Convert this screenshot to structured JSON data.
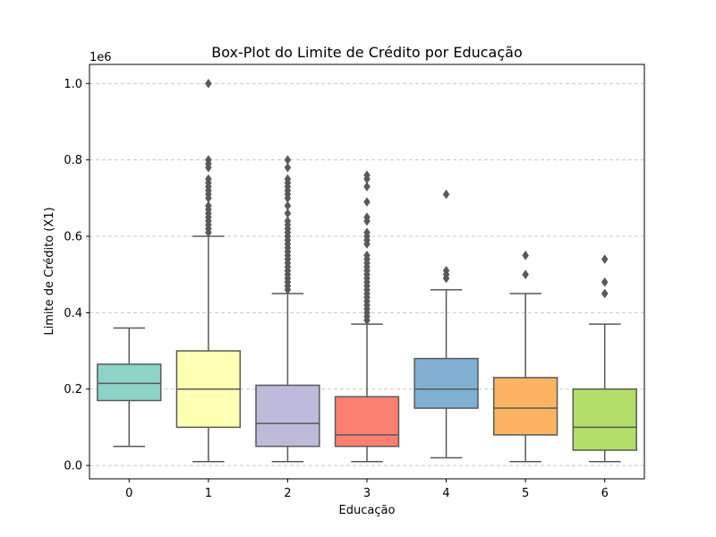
{
  "chart_data": {
    "type": "box",
    "title": "Box-Plot do Limite de Crédito por Educação",
    "xlabel": "Educação",
    "ylabel": "Limite de Crédito (X1)",
    "y_offset_label": "1e6",
    "ylim": [
      -35000,
      1050000
    ],
    "y_ticks": [
      0,
      200000,
      400000,
      600000,
      800000,
      1000000
    ],
    "y_tick_labels": [
      "0.0",
      "0.2",
      "0.4",
      "0.6",
      "0.8",
      "1.0"
    ],
    "grid": "horizontal dashed",
    "categories": [
      "0",
      "1",
      "2",
      "3",
      "4",
      "5",
      "6"
    ],
    "boxes": [
      {
        "category": "0",
        "color": "#8dd3c7",
        "whisker_low": 50000,
        "q1": 170000,
        "median": 215000,
        "q3": 265000,
        "whisker_high": 360000,
        "outliers": []
      },
      {
        "category": "1",
        "color": "#ffffb3",
        "whisker_low": 10000,
        "q1": 100000,
        "median": 200000,
        "q3": 300000,
        "whisker_high": 600000,
        "outliers": [
          610000,
          620000,
          630000,
          640000,
          650000,
          660000,
          670000,
          680000,
          700000,
          710000,
          720000,
          730000,
          740000,
          750000,
          780000,
          790000,
          800000,
          1000000
        ]
      },
      {
        "category": "2",
        "color": "#bebada",
        "whisker_low": 10000,
        "q1": 50000,
        "median": 110000,
        "q3": 210000,
        "whisker_high": 450000,
        "outliers": [
          460000,
          470000,
          480000,
          490000,
          500000,
          510000,
          520000,
          530000,
          540000,
          550000,
          560000,
          570000,
          580000,
          590000,
          600000,
          610000,
          620000,
          630000,
          640000,
          660000,
          680000,
          700000,
          710000,
          720000,
          730000,
          740000,
          750000,
          780000,
          800000
        ]
      },
      {
        "category": "3",
        "color": "#fb8072",
        "whisker_low": 10000,
        "q1": 50000,
        "median": 80000,
        "q3": 180000,
        "whisker_high": 370000,
        "outliers": [
          380000,
          390000,
          400000,
          410000,
          420000,
          430000,
          440000,
          450000,
          460000,
          470000,
          480000,
          490000,
          500000,
          510000,
          520000,
          530000,
          540000,
          550000,
          580000,
          590000,
          600000,
          610000,
          640000,
          650000,
          690000,
          730000,
          750000,
          760000
        ]
      },
      {
        "category": "4",
        "color": "#80b1d3",
        "whisker_low": 20000,
        "q1": 150000,
        "median": 200000,
        "q3": 280000,
        "whisker_high": 460000,
        "outliers": [
          490000,
          500000,
          510000,
          710000
        ]
      },
      {
        "category": "5",
        "color": "#fdb462",
        "whisker_low": 10000,
        "q1": 80000,
        "median": 150000,
        "q3": 230000,
        "whisker_high": 450000,
        "outliers": [
          500000,
          550000
        ]
      },
      {
        "category": "6",
        "color": "#b3de69",
        "whisker_low": 10000,
        "q1": 40000,
        "median": 100000,
        "q3": 200000,
        "whisker_high": 370000,
        "outliers": [
          450000,
          480000,
          540000
        ]
      }
    ]
  }
}
